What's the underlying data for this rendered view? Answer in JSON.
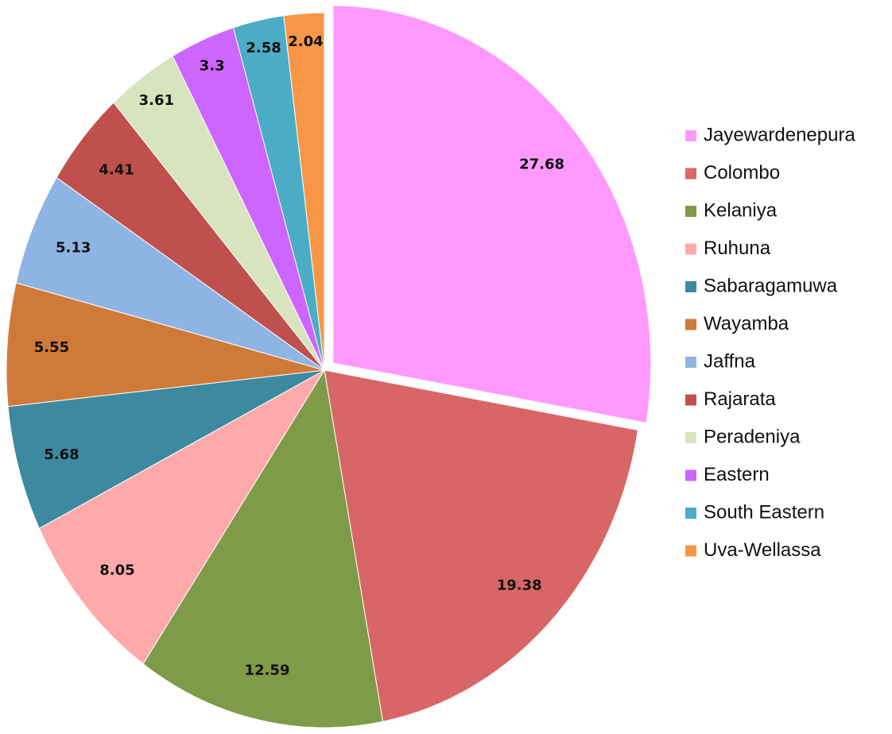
{
  "chart_data": {
    "type": "pie",
    "categories": [
      "Jayewardenepura",
      "Colombo",
      "Kelaniya",
      "Ruhuna",
      "Sabaragamuwa",
      "Wayamba",
      "Jaffna",
      "Rajarata",
      "Peradeniya",
      "Eastern",
      "South Eastern",
      "Uva-Wellassa"
    ],
    "values": [
      27.68,
      19.38,
      12.59,
      8.05,
      5.68,
      5.55,
      5.13,
      4.41,
      3.61,
      3.3,
      2.58,
      2.04
    ],
    "colors": [
      "#ff99ff",
      "#d96666",
      "#7f9a48",
      "#ffaaaa",
      "#3d8aa0",
      "#d07a3a",
      "#8eb4e3",
      "#c0504d",
      "#d7e4bd",
      "#cc66ff",
      "#4bacc6",
      "#f79646"
    ],
    "legend": "right"
  }
}
